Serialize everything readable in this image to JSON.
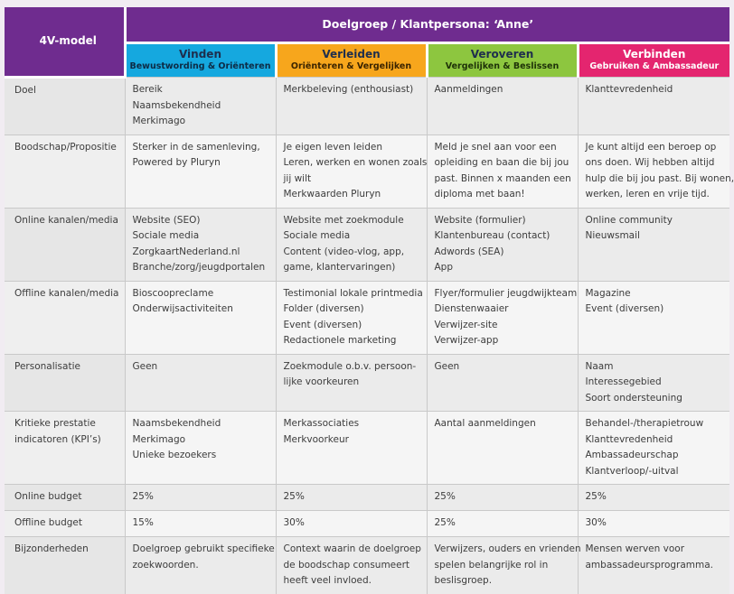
{
  "header": {
    "model_label": "4V-model",
    "persona_title": "Doelgroep / Klantpersona: ‘Anne’",
    "phases": [
      {
        "title": "Vinden",
        "subtitle": "Bewustwording & Oriënteren",
        "color": "#15a8df"
      },
      {
        "title": "Verleiden",
        "subtitle": "Oriënteren & Vergelijken",
        "color": "#f7a61c"
      },
      {
        "title": "Veroveren",
        "subtitle": "Vergelijken & Beslissen",
        "color": "#8dc63f"
      },
      {
        "title": "Verbinden",
        "subtitle": "Gebruiken & Ambassadeur",
        "color": "#e4256f"
      }
    ]
  },
  "rows": [
    {
      "label": [
        "Doel"
      ],
      "cells": [
        [
          "Bereik",
          "Naamsbekendheid",
          "Merkimago"
        ],
        [
          "Merkbeleving (enthousiast)"
        ],
        [
          "Aanmeldingen"
        ],
        [
          "Klanttevredenheid"
        ]
      ]
    },
    {
      "label": [
        "Boodschap/Propositie"
      ],
      "cells": [
        [
          "Sterker in de samenleving,",
          "Powered by Pluryn"
        ],
        [
          "Je eigen leven leiden",
          "Leren, werken en wonen zoals",
          "jij wilt",
          "Merkwaarden Pluryn"
        ],
        [
          "Meld je snel aan voor een",
          "opleiding en baan die bij jou",
          "past. Binnen x maanden een",
          "diploma met baan!"
        ],
        [
          "Je kunt altijd een beroep op",
          "ons doen. Wij hebben altijd",
          "hulp die bij jou past. Bij wonen,",
          "werken, leren en vrije tijd."
        ]
      ]
    },
    {
      "label": [
        "Online kanalen/media"
      ],
      "cells": [
        [
          "Website (SEO)",
          "Sociale media",
          "ZorgkaartNederland.nl",
          "Branche/zorg/jeugdportalen"
        ],
        [
          "Website met zoekmodule",
          "Sociale media",
          "Content (video-vlog, app,",
          "game, klantervaringen)"
        ],
        [
          "Website (formulier)",
          "Klantenbureau (contact)",
          "Adwords (SEA)",
          "App"
        ],
        [
          "Online community",
          "Nieuwsmail"
        ]
      ]
    },
    {
      "label": [
        "Offline kanalen/media"
      ],
      "cells": [
        [
          "Bioscoopreclame",
          "Onderwijsactiviteiten"
        ],
        [
          "Testimonial lokale printmedia",
          "Folder (diversen)",
          "Event (diversen)",
          "Redactionele marketing"
        ],
        [
          "Flyer/formulier jeugdwijkteam",
          "Dienstenwaaier",
          "Verwijzer-site",
          "Verwijzer-app"
        ],
        [
          "Magazine",
          "Event (diversen)"
        ]
      ]
    },
    {
      "label": [
        "Personalisatie"
      ],
      "cells": [
        [
          "Geen"
        ],
        [
          "Zoekmodule o.b.v. persoon-",
          "lijke voorkeuren"
        ],
        [
          "Geen"
        ],
        [
          "Naam",
          "Interessegebied",
          "Soort ondersteuning"
        ]
      ]
    },
    {
      "label": [
        "Kritieke prestatie",
        "indicatoren (KPI’s)"
      ],
      "cells": [
        [
          "Naamsbekendheid",
          "Merkimago",
          "Unieke bezoekers"
        ],
        [
          "Merkassociaties",
          "Merkvoorkeur"
        ],
        [
          "Aantal aanmeldingen"
        ],
        [
          "Behandel-/therapietrouw",
          "Klanttevredenheid",
          "Ambassadeurschap",
          "Klantverloop/-uitval"
        ]
      ]
    },
    {
      "label": [
        "Online budget"
      ],
      "cells": [
        [
          "25%"
        ],
        [
          "25%"
        ],
        [
          "25%"
        ],
        [
          "25%"
        ]
      ]
    },
    {
      "label": [
        "Offline budget"
      ],
      "cells": [
        [
          "15%"
        ],
        [
          "30%"
        ],
        [
          "25%"
        ],
        [
          "30%"
        ]
      ]
    },
    {
      "label": [
        "Bijzonderheden"
      ],
      "cells": [
        [
          "Doelgroep gebruikt specifieke",
          "zoekwoorden."
        ],
        [
          "Context waarin de doelgroep",
          "de boodschap consumeert",
          "heeft veel invloed."
        ],
        [
          "Verwijzers, ouders en vrienden",
          "spelen belangrijke rol in",
          "beslisgroep."
        ],
        [
          "Mensen werven voor",
          "ambassadeursprogramma."
        ]
      ]
    }
  ]
}
